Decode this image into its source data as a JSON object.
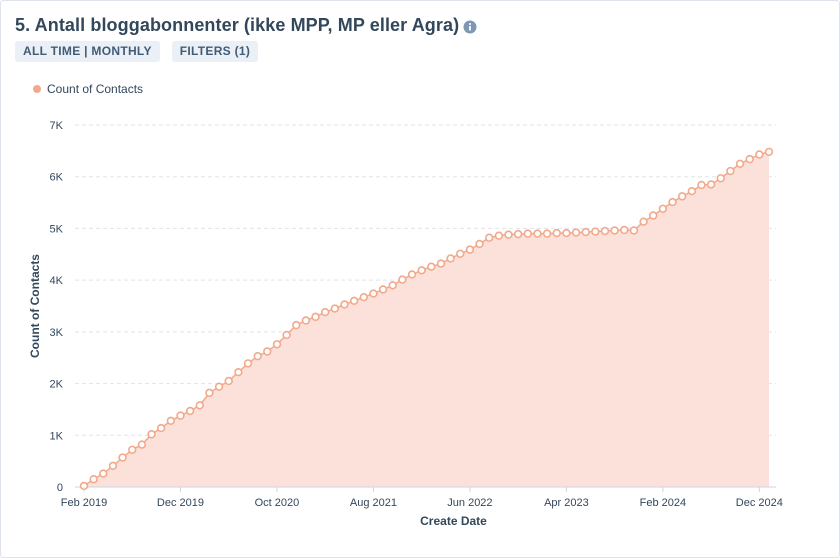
{
  "header": {
    "title": "5. Antall bloggabonnenter (ikke MPP, MP eller Agra)",
    "info_icon": "info-circle-icon"
  },
  "pills": [
    {
      "label": "ALL TIME | MONTHLY"
    },
    {
      "label": "FILTERS (1)"
    }
  ],
  "colors": {
    "series": "#f2a98b",
    "area": "#fce1da",
    "grid": "#dfe3eb",
    "text": "#33475b"
  },
  "chart_data": {
    "type": "area",
    "legend_position": "top-left",
    "grid": true,
    "xlabel": "Create Date",
    "ylabel": "Count of Contacts",
    "ylim": [
      0,
      7000
    ],
    "y_ticks": [
      {
        "value": 0,
        "label": "0"
      },
      {
        "value": 1000,
        "label": "1K"
      },
      {
        "value": 2000,
        "label": "2K"
      },
      {
        "value": 3000,
        "label": "3K"
      },
      {
        "value": 4000,
        "label": "4K"
      },
      {
        "value": 5000,
        "label": "5K"
      },
      {
        "value": 6000,
        "label": "6K"
      },
      {
        "value": 7000,
        "label": "7K"
      }
    ],
    "x_ticks": [
      {
        "index": 0,
        "label": "Feb 2019"
      },
      {
        "index": 10,
        "label": "Dec 2019"
      },
      {
        "index": 20,
        "label": "Oct 2020"
      },
      {
        "index": 30,
        "label": "Aug 2021"
      },
      {
        "index": 40,
        "label": "Jun 2022"
      },
      {
        "index": 50,
        "label": "Apr 2023"
      },
      {
        "index": 60,
        "label": "Feb 2024"
      },
      {
        "index": 70,
        "label": "Dec 2024"
      }
    ],
    "series": [
      {
        "name": "Count of Contacts",
        "start": "Feb 2019",
        "values": [
          20,
          150,
          260,
          410,
          570,
          720,
          820,
          1020,
          1140,
          1280,
          1380,
          1470,
          1580,
          1820,
          1940,
          2050,
          2220,
          2390,
          2530,
          2620,
          2760,
          2940,
          3130,
          3220,
          3290,
          3380,
          3450,
          3530,
          3600,
          3670,
          3740,
          3820,
          3900,
          4010,
          4110,
          4190,
          4260,
          4320,
          4420,
          4510,
          4590,
          4700,
          4820,
          4860,
          4880,
          4890,
          4900,
          4900,
          4900,
          4910,
          4910,
          4920,
          4930,
          4940,
          4950,
          4960,
          4970,
          4960,
          5130,
          5250,
          5380,
          5510,
          5620,
          5720,
          5840,
          5850,
          5970,
          6110,
          6250,
          6340,
          6430,
          6480
        ]
      }
    ]
  }
}
